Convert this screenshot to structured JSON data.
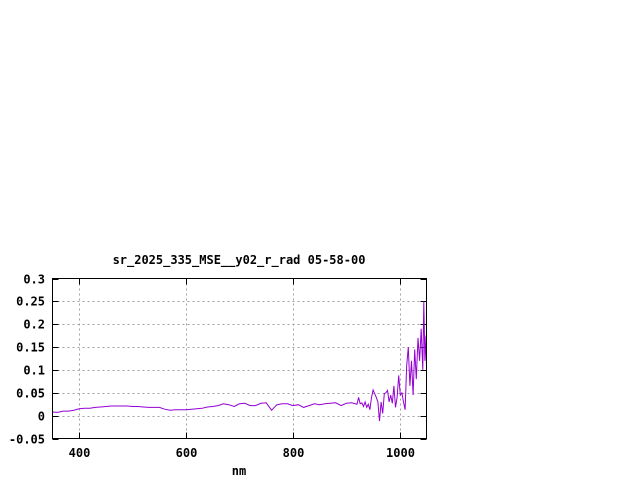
{
  "chart_data": {
    "type": "line",
    "title": "sr_2025_335_MSE__y02_r_rad 05-58-00",
    "xlabel": "nm",
    "ylabel": "",
    "xlim": [
      350,
      1050
    ],
    "ylim": [
      -0.05,
      0.3
    ],
    "xticks": [
      400,
      600,
      800,
      1000
    ],
    "yticks": [
      -0.05,
      0,
      0.05,
      0.1,
      0.15,
      0.2,
      0.25,
      0.3
    ],
    "ytick_labels": [
      "-0.05",
      "0",
      "0.05",
      "0.1",
      "0.15",
      "0.2",
      "0.25",
      "0.3"
    ],
    "grid": true,
    "legend": "none",
    "series": [
      {
        "color": "#9400d3",
        "x": [
          350,
          360,
          370,
          380,
          390,
          400,
          410,
          420,
          430,
          440,
          450,
          460,
          470,
          480,
          490,
          500,
          510,
          520,
          530,
          540,
          550,
          560,
          570,
          580,
          590,
          600,
          610,
          620,
          630,
          640,
          650,
          660,
          670,
          680,
          690,
          700,
          710,
          720,
          730,
          740,
          750,
          760,
          770,
          780,
          790,
          800,
          810,
          820,
          830,
          840,
          850,
          860,
          870,
          880,
          890,
          900,
          910,
          920,
          923,
          926,
          929,
          932,
          935,
          938,
          941,
          944,
          947,
          950,
          953,
          956,
          959,
          962,
          965,
          968,
          971,
          974,
          977,
          980,
          983,
          986,
          989,
          992,
          995,
          998,
          1001,
          1004,
          1007,
          1010,
          1013,
          1016,
          1019,
          1022,
          1025,
          1028,
          1031,
          1034,
          1037,
          1040,
          1043,
          1045,
          1047,
          1049,
          1050
        ],
        "y": [
          0.008,
          0.007,
          0.01,
          0.01,
          0.012,
          0.015,
          0.016,
          0.016,
          0.018,
          0.019,
          0.02,
          0.021,
          0.021,
          0.021,
          0.021,
          0.02,
          0.02,
          0.019,
          0.018,
          0.018,
          0.018,
          0.014,
          0.012,
          0.013,
          0.013,
          0.013,
          0.014,
          0.015,
          0.016,
          0.019,
          0.02,
          0.022,
          0.026,
          0.024,
          0.02,
          0.026,
          0.027,
          0.022,
          0.022,
          0.027,
          0.028,
          0.012,
          0.024,
          0.026,
          0.026,
          0.022,
          0.024,
          0.018,
          0.022,
          0.026,
          0.024,
          0.026,
          0.027,
          0.028,
          0.022,
          0.027,
          0.028,
          0.025,
          0.04,
          0.026,
          0.028,
          0.02,
          0.03,
          0.018,
          0.025,
          0.013,
          0.04,
          0.056,
          0.048,
          0.04,
          0.03,
          -0.012,
          0.03,
          0.005,
          0.048,
          0.05,
          0.055,
          0.03,
          0.045,
          0.027,
          0.065,
          0.018,
          0.04,
          0.088,
          0.045,
          0.05,
          0.03,
          0.013,
          0.11,
          0.15,
          0.065,
          0.12,
          0.045,
          0.145,
          0.08,
          0.17,
          0.12,
          0.19,
          0.1,
          0.25,
          0.12,
          0.175,
          0.1
        ]
      }
    ]
  }
}
